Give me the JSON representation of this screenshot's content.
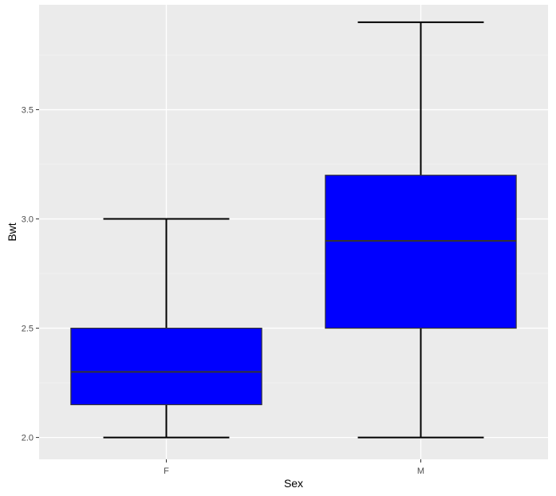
{
  "chart_data": {
    "type": "boxplot",
    "title": "",
    "xlabel": "Sex",
    "ylabel": "Bwt",
    "categories": [
      "F",
      "M"
    ],
    "boxes": [
      {
        "category": "F",
        "min": 2.0,
        "q1": 2.15,
        "median": 2.3,
        "q3": 2.5,
        "max": 3.0
      },
      {
        "category": "M",
        "min": 2.0,
        "q1": 2.5,
        "median": 2.9,
        "q3": 3.2,
        "max": 3.9
      }
    ],
    "ylim": [
      1.9,
      3.98
    ],
    "yticks": [
      "2.0",
      "2.5",
      "3.0",
      "3.5"
    ],
    "ytick_values": [
      2.0,
      2.5,
      3.0,
      3.5
    ],
    "grid": true,
    "colors": {
      "panel_background": "#ebebeb",
      "grid_major": "#ffffff",
      "grid_minor": "#f5f5f5",
      "box_fill": "#0000ff",
      "box_outline": "#333333",
      "whisker": "#000000"
    }
  }
}
